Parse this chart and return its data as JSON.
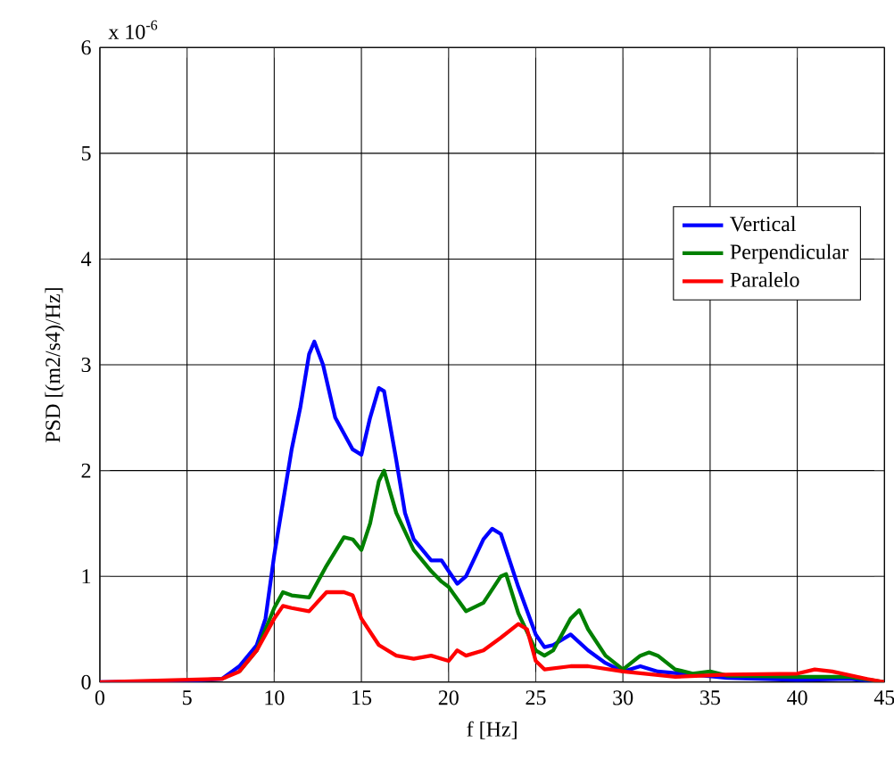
{
  "chart_data": {
    "type": "line",
    "xlabel": "f [Hz]",
    "ylabel": "PSD [(m2/s4)/Hz]",
    "annotations": [
      "x 10$^{-6}$"
    ],
    "xlim": [
      0,
      45
    ],
    "ylim": [
      0,
      6
    ],
    "xticks": [
      0,
      5,
      10,
      15,
      20,
      25,
      30,
      35,
      40,
      45
    ],
    "yticks": [
      0,
      1,
      2,
      3,
      4,
      5,
      6
    ],
    "grid": true,
    "legend": "right",
    "line_style": "solid",
    "marker": "none",
    "series": [
      {
        "name": "Vertical",
        "color": "#0000ff",
        "x": [
          0,
          5,
          7,
          8,
          9,
          9.5,
          10,
          10.5,
          11,
          11.5,
          12,
          12.3,
          12.8,
          13.5,
          14.5,
          15,
          15.5,
          16,
          16.3,
          17,
          17.5,
          18,
          19,
          19.6,
          20,
          20.5,
          21,
          22,
          22.5,
          23,
          24,
          25,
          25.5,
          26,
          27,
          28,
          29,
          30,
          31,
          32,
          34,
          36,
          40,
          43,
          45
        ],
        "values": [
          0,
          0.01,
          0.03,
          0.15,
          0.35,
          0.6,
          1.2,
          1.7,
          2.2,
          2.6,
          3.1,
          3.22,
          3.0,
          2.5,
          2.2,
          2.15,
          2.5,
          2.78,
          2.75,
          2.1,
          1.6,
          1.35,
          1.15,
          1.15,
          1.05,
          0.93,
          1.0,
          1.35,
          1.45,
          1.4,
          0.9,
          0.45,
          0.33,
          0.35,
          0.45,
          0.3,
          0.18,
          0.1,
          0.15,
          0.1,
          0.07,
          0.04,
          0.02,
          0.03,
          0
        ]
      },
      {
        "name": "Perpendicular",
        "color": "#008000",
        "x": [
          8,
          9,
          10,
          10.5,
          11,
          12,
          13,
          14,
          14.5,
          15,
          15.5,
          16,
          16.3,
          17,
          18,
          19,
          19.6,
          20,
          21,
          22,
          23,
          23.3,
          24,
          25,
          25.5,
          26,
          27,
          27.5,
          28,
          29,
          30,
          31,
          31.5,
          32,
          33,
          34,
          35,
          36,
          40,
          43,
          45
        ],
        "values": [
          0.1,
          0.3,
          0.7,
          0.85,
          0.82,
          0.8,
          1.1,
          1.37,
          1.35,
          1.25,
          1.5,
          1.9,
          2.0,
          1.6,
          1.25,
          1.05,
          0.95,
          0.9,
          0.67,
          0.75,
          1.0,
          1.02,
          0.65,
          0.3,
          0.25,
          0.3,
          0.6,
          0.68,
          0.5,
          0.25,
          0.12,
          0.25,
          0.28,
          0.25,
          0.12,
          0.08,
          0.1,
          0.06,
          0.05,
          0.05,
          0
        ]
      },
      {
        "name": "Paralelo",
        "color": "#ff0000",
        "x": [
          0,
          7,
          8,
          9,
          10,
          10.5,
          11,
          12,
          13,
          14,
          14.5,
          15,
          16,
          17,
          18,
          19,
          20,
          20.5,
          21,
          22,
          23,
          24,
          24.5,
          25,
          25.5,
          27,
          28,
          30,
          33,
          36,
          40,
          41,
          42,
          44,
          45
        ],
        "values": [
          0,
          0.03,
          0.1,
          0.3,
          0.6,
          0.72,
          0.7,
          0.67,
          0.85,
          0.85,
          0.82,
          0.6,
          0.35,
          0.25,
          0.22,
          0.25,
          0.2,
          0.3,
          0.25,
          0.3,
          0.42,
          0.55,
          0.5,
          0.2,
          0.12,
          0.15,
          0.15,
          0.1,
          0.05,
          0.07,
          0.08,
          0.12,
          0.1,
          0.03,
          0
        ]
      }
    ]
  }
}
